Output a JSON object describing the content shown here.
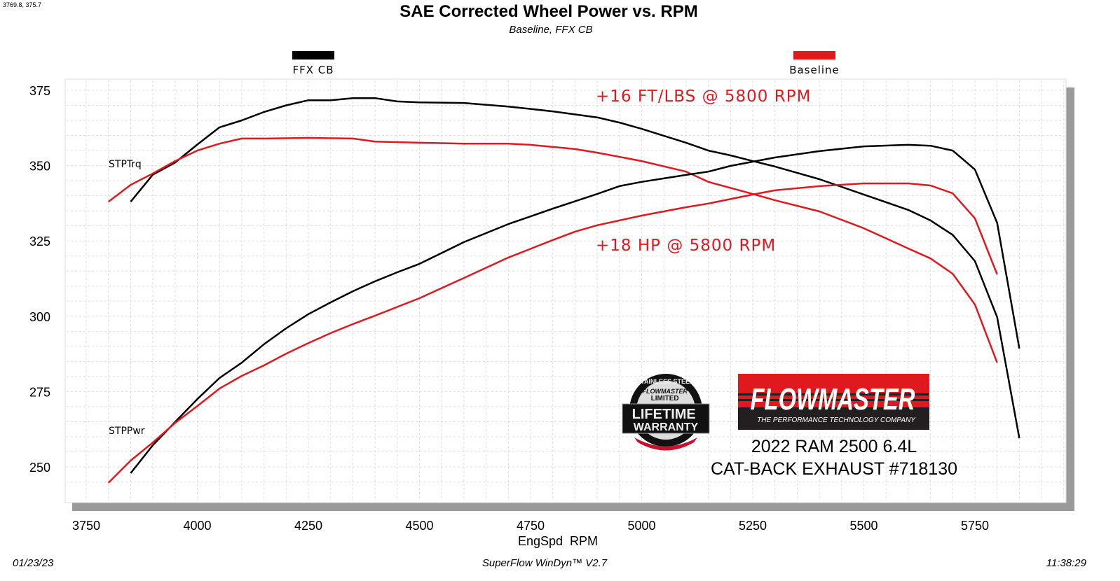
{
  "cursor_readout": "3769.8, 375.7",
  "footer": {
    "date": "01/23/23",
    "software": "SuperFlow WinDyn™ V2.7",
    "time": "11:38:29"
  },
  "branding": {
    "warranty_badge": "STAINLESS STEEL FLOWMASTER LIMITED LIFETIME WARRANTY",
    "logo": "FLOWMASTER",
    "logo_tagline": "THE PERFORMANCE TECHNOLOGY COMPANY",
    "vehicle": "2022 RAM 2500 6.4L",
    "product": "CAT-BACK EXHAUST #718130"
  },
  "chart_data": {
    "type": "line",
    "title": "SAE Corrected Wheel Power vs. RPM",
    "subtitle": "Baseline, FFX CB",
    "xlabel": "EngSpd  RPM",
    "ylabel": "",
    "xlim": [
      3700,
      5980
    ],
    "ylim": [
      240,
      380
    ],
    "xticks": [
      3750,
      4000,
      4250,
      4500,
      4750,
      5000,
      5250,
      5500,
      5750
    ],
    "yticks": [
      250,
      275,
      300,
      325,
      350,
      375
    ],
    "grid": true,
    "legend_placement": "top",
    "curve_labels": [
      "STPTrq",
      "STPPwr"
    ],
    "annotations": [
      {
        "text": "+16 FT/LBS @ 5800 RPM",
        "color": "#e0191f"
      },
      {
        "text": "+18 HP @ 5800 RPM",
        "color": "#e0191f"
      }
    ],
    "series": [
      {
        "name": "FFX CB",
        "measure": "STPTrq",
        "color": "#000000",
        "x": [
          3850,
          3900,
          3950,
          4000,
          4050,
          4100,
          4150,
          4200,
          4250,
          4300,
          4350,
          4400,
          4450,
          4500,
          4600,
          4700,
          4800,
          4900,
          4950,
          5000,
          5100,
          5150,
          5200,
          5250,
          5300,
          5400,
          5500,
          5600,
          5650,
          5700,
          5750,
          5800,
          5850
        ],
        "y": [
          338,
          347,
          351,
          357,
          362.7,
          365,
          367.8,
          370,
          371.7,
          371.7,
          372.4,
          372.4,
          371.3,
          371,
          370.8,
          369.6,
          368,
          366,
          364.3,
          362.2,
          357.6,
          355,
          353.4,
          351.5,
          349.7,
          345.5,
          340.4,
          335.3,
          331.8,
          327,
          318.3,
          299.7,
          259.5
        ]
      },
      {
        "name": "Baseline",
        "measure": "STPTrq",
        "color": "#e0191f",
        "x": [
          3800,
          3850,
          3900,
          3950,
          4000,
          4050,
          4100,
          4150,
          4250,
          4350,
          4400,
          4500,
          4600,
          4700,
          4750,
          4850,
          4900,
          5000,
          5100,
          5150,
          5250,
          5300,
          5400,
          5500,
          5600,
          5650,
          5700,
          5750,
          5800
        ],
        "y": [
          338,
          343.6,
          347.4,
          351.5,
          355,
          357.3,
          359,
          359,
          359.2,
          359,
          358,
          357.6,
          357.3,
          357.3,
          356.9,
          355.5,
          354.3,
          351.5,
          348,
          344.6,
          340.6,
          338.5,
          334.8,
          329.2,
          322.5,
          319.2,
          314.1,
          303.9,
          284.6
        ]
      },
      {
        "name": "FFX CB",
        "measure": "STPPwr",
        "color": "#000000",
        "x": [
          3850,
          3900,
          3950,
          4000,
          4050,
          4100,
          4150,
          4200,
          4250,
          4300,
          4350,
          4400,
          4450,
          4500,
          4600,
          4700,
          4800,
          4900,
          4950,
          5000,
          5100,
          5150,
          5200,
          5300,
          5400,
          5500,
          5600,
          5650,
          5700,
          5750,
          5800,
          5850
        ],
        "y": [
          247.9,
          257.2,
          264.9,
          272.5,
          279.5,
          284.6,
          290.7,
          296,
          300.7,
          304.6,
          308.3,
          311.6,
          314.6,
          317.4,
          324.6,
          330.6,
          335.7,
          340.6,
          343.2,
          344.6,
          346.9,
          348,
          349.9,
          352.7,
          354.8,
          356.4,
          356.9,
          356.6,
          355,
          348.7,
          331,
          289.3
        ]
      },
      {
        "name": "Baseline",
        "measure": "STPPwr",
        "color": "#e0191f",
        "x": [
          3800,
          3850,
          3900,
          3950,
          4000,
          4050,
          4100,
          4150,
          4200,
          4250,
          4300,
          4350,
          4400,
          4500,
          4600,
          4700,
          4800,
          4850,
          4900,
          5000,
          5100,
          5150,
          5250,
          5300,
          5400,
          5500,
          5600,
          5650,
          5700,
          5750,
          5800
        ],
        "y": [
          244.7,
          252.1,
          258.1,
          264.6,
          270.2,
          276,
          280.2,
          283.7,
          287.6,
          291.1,
          294.4,
          297.4,
          300.2,
          306,
          312.7,
          319.5,
          325.3,
          328.1,
          330.2,
          333.4,
          336.2,
          337.4,
          340.4,
          341.8,
          343.2,
          344.1,
          344.1,
          343.4,
          340.8,
          332.5,
          313.9
        ]
      }
    ]
  }
}
